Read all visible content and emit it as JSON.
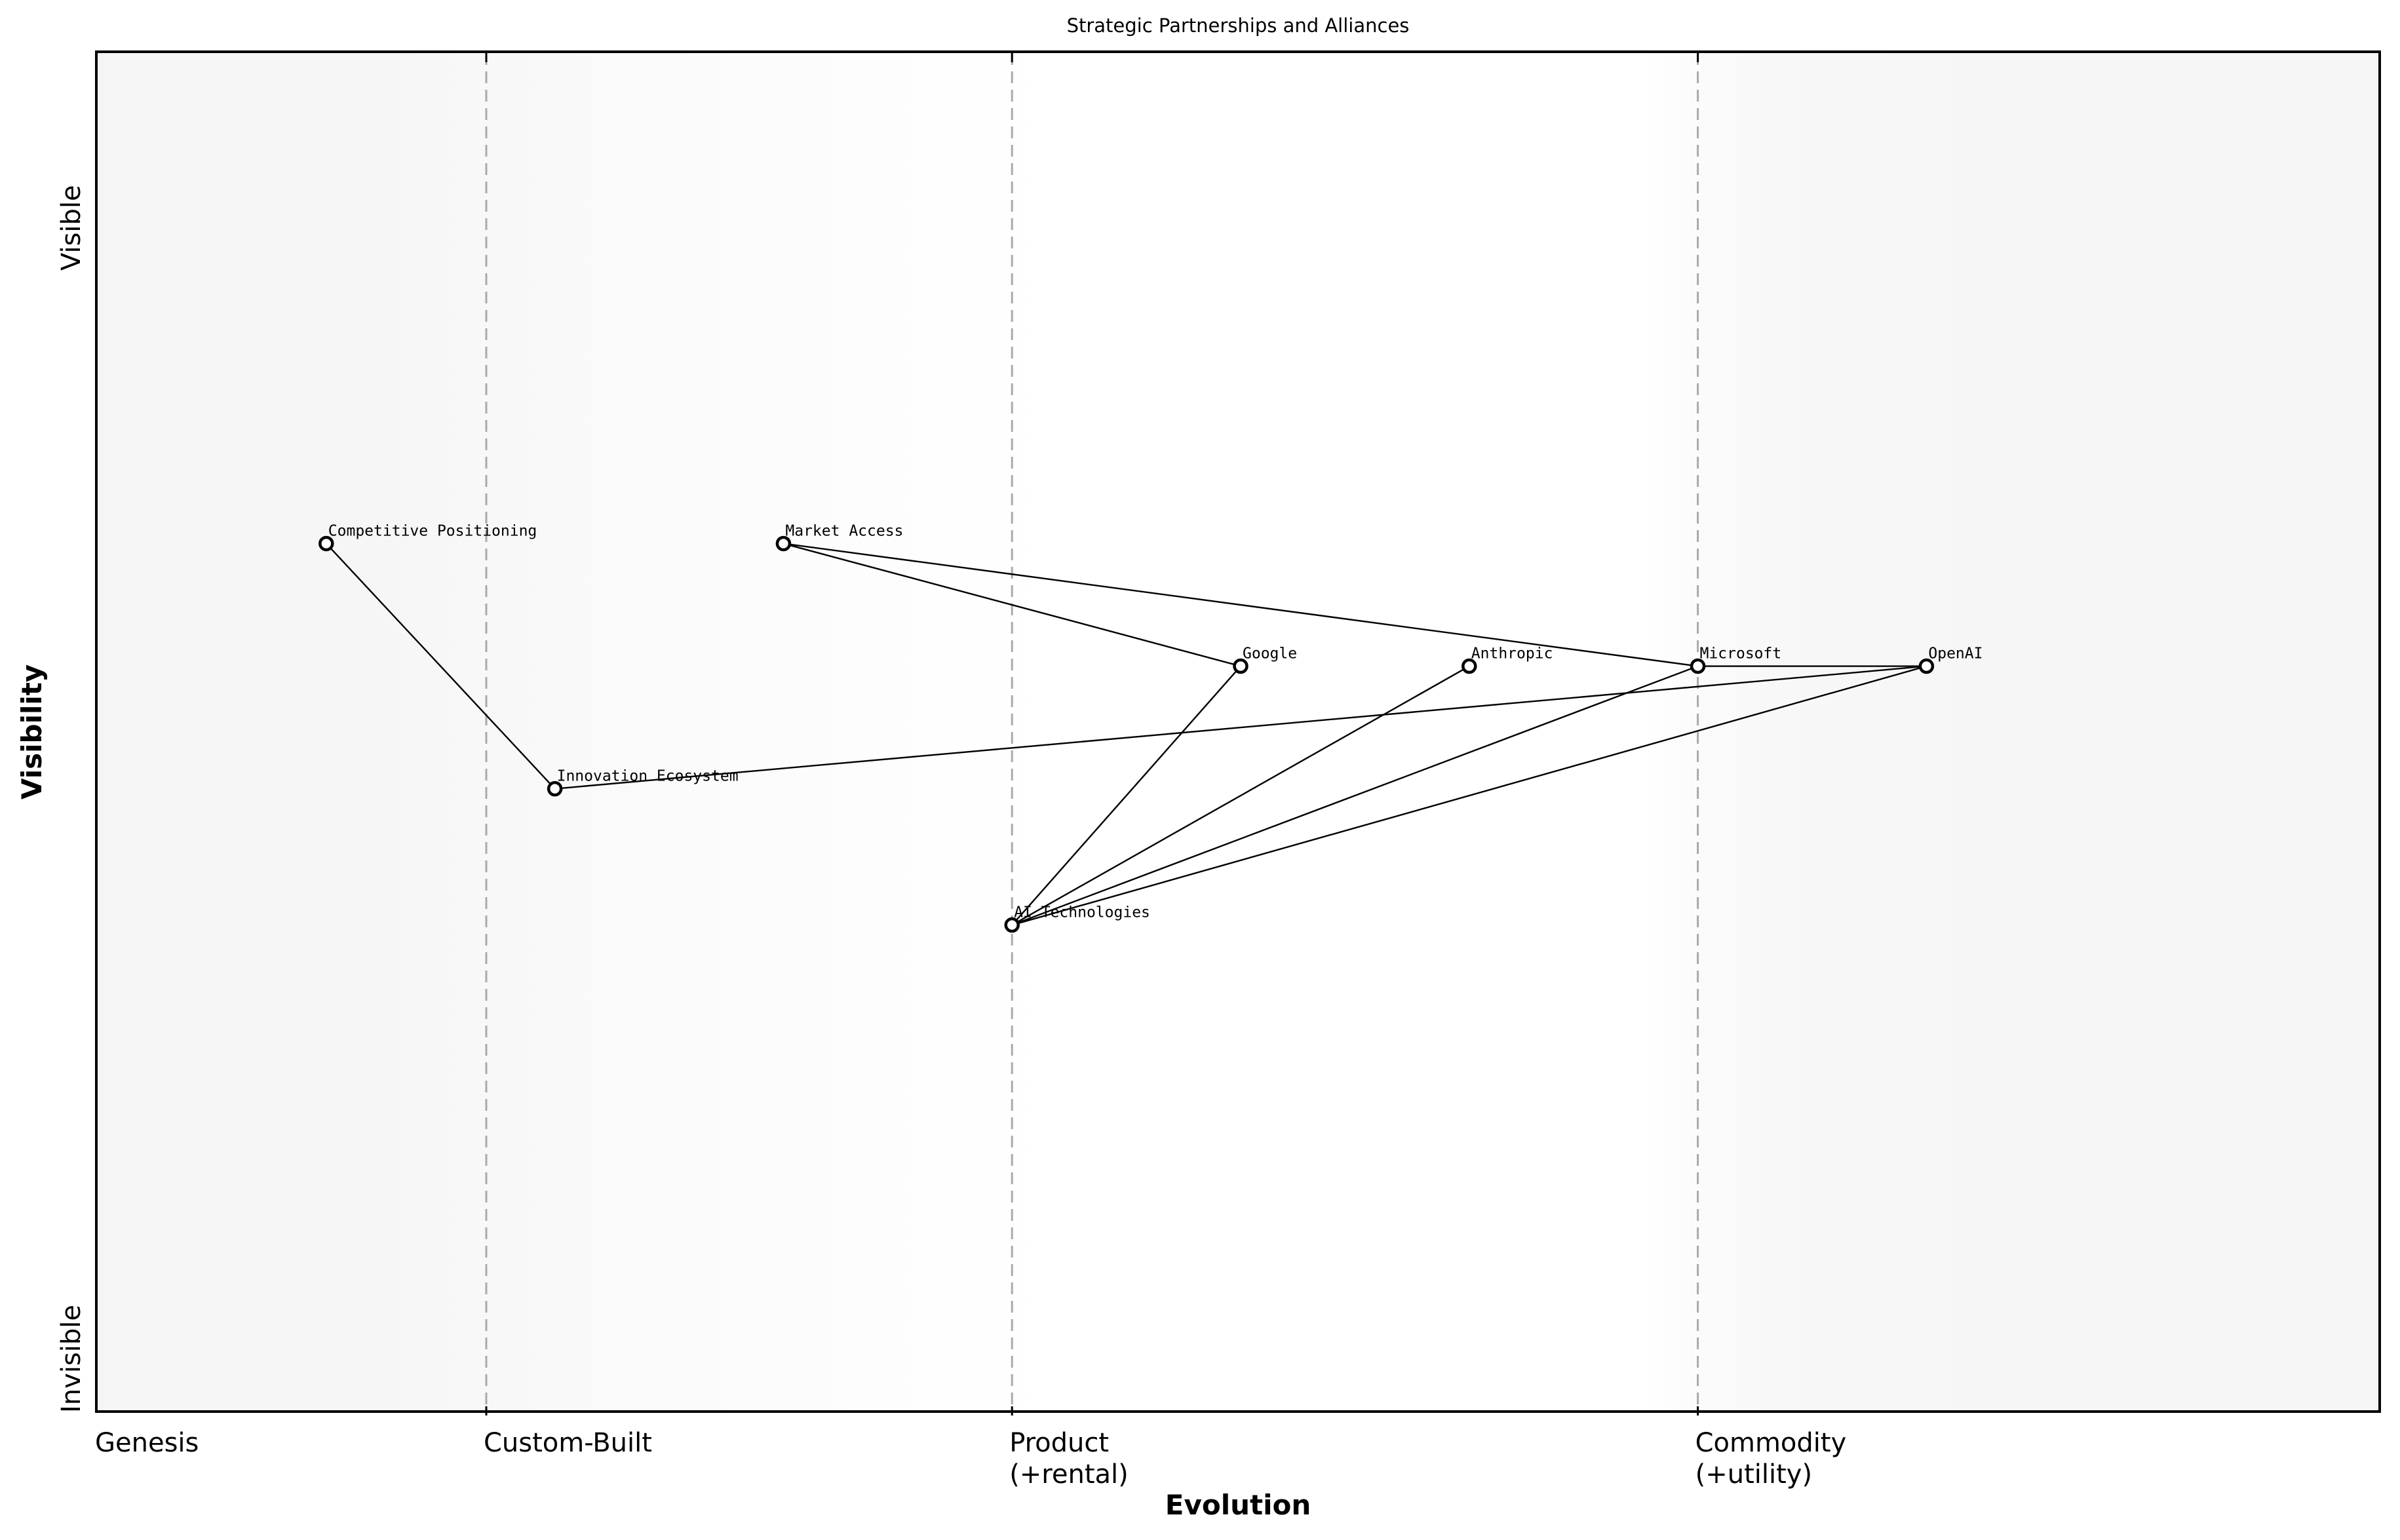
{
  "chart_data": {
    "type": "scatter",
    "subtype": "wardley-map",
    "title": "Strategic Partnerships and Alliances",
    "xlabel": "Evolution",
    "ylabel": "Visibility",
    "xlim": [
      0,
      1
    ],
    "ylim": [
      0,
      1
    ],
    "grid": false,
    "legend": null,
    "x_stages": [
      {
        "label": "Genesis",
        "x": 0.0
      },
      {
        "label": "Custom-Built",
        "x": 0.17
      },
      {
        "label": "Product\n(+rental)",
        "x": 0.4
      },
      {
        "label": "Commodity\n(+utility)",
        "x": 0.7
      }
    ],
    "y_ticks": [
      {
        "label": "Visible",
        "y": 0.87
      },
      {
        "label": "Invisible",
        "y": 0.0
      }
    ],
    "nodes": [
      {
        "name": "Competitive Positioning",
        "x": 0.1,
        "y": 0.64
      },
      {
        "name": "Market Access",
        "x": 0.3,
        "y": 0.64
      },
      {
        "name": "Google",
        "x": 0.5,
        "y": 0.55
      },
      {
        "name": "Anthropic",
        "x": 0.6,
        "y": 0.55
      },
      {
        "name": "Microsoft",
        "x": 0.7,
        "y": 0.55
      },
      {
        "name": "OpenAI",
        "x": 0.8,
        "y": 0.55
      },
      {
        "name": "Innovation Ecosystem",
        "x": 0.2,
        "y": 0.46
      },
      {
        "name": "AI Technologies",
        "x": 0.4,
        "y": 0.36
      }
    ],
    "edges": [
      [
        "Competitive Positioning",
        "Innovation Ecosystem"
      ],
      [
        "Market Access",
        "Google"
      ],
      [
        "Market Access",
        "Microsoft"
      ],
      [
        "Innovation Ecosystem",
        "OpenAI"
      ],
      [
        "AI Technologies",
        "Google"
      ],
      [
        "AI Technologies",
        "Anthropic"
      ],
      [
        "AI Technologies",
        "Microsoft"
      ],
      [
        "AI Technologies",
        "OpenAI"
      ],
      [
        "Microsoft",
        "OpenAI"
      ]
    ]
  },
  "colors": {
    "node_fill": "#ffffff",
    "node_stroke": "#000000",
    "edge": "#000000",
    "stage_line": "#aaaaaa",
    "background_edge": "#f5f5f5",
    "background_center": "#ffffff"
  }
}
